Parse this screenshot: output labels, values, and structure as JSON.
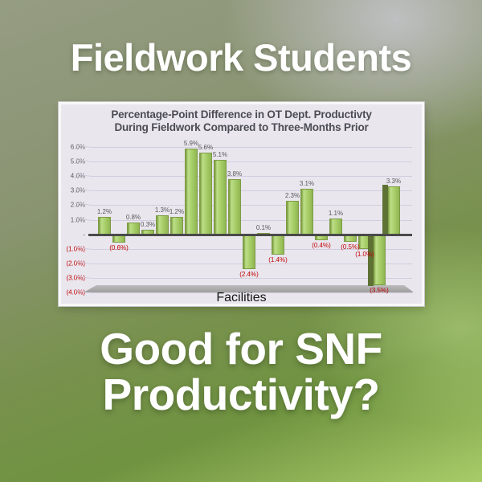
{
  "page": {
    "top_title": "Fieldwork Students",
    "bottom_title_line1": "Good for SNF",
    "bottom_title_line2": "Productivity?"
  },
  "chart_data": {
    "type": "bar",
    "title_lines": [
      "Percentage-Point Difference in OT Dept. Productivty",
      "During Fieldwork Compared to Three-Months Prior"
    ],
    "xlabel": "Facilities",
    "ylim": [
      -4,
      6
    ],
    "grid": true,
    "legend": false,
    "yticks": [
      {
        "value": 6,
        "label": "6.0%"
      },
      {
        "value": 5,
        "label": "5.0%"
      },
      {
        "value": 4,
        "label": "4.0%"
      },
      {
        "value": 3,
        "label": "3.0%"
      },
      {
        "value": 2,
        "label": "2.0%"
      },
      {
        "value": 1,
        "label": "1.0%"
      },
      {
        "value": 0,
        "label": "-"
      },
      {
        "value": -1,
        "label": "(1.0%)"
      },
      {
        "value": -2,
        "label": "(2.0%)"
      },
      {
        "value": -3,
        "label": "(3.0%)"
      },
      {
        "value": -4,
        "label": "(4.0%)"
      }
    ],
    "bars": [
      {
        "value": 1.2,
        "label": "1.2%"
      },
      {
        "value": -0.6,
        "label": "(0.6%)"
      },
      {
        "value": 0.8,
        "label": "0.8%"
      },
      {
        "value": 0.3,
        "label": "0.3%"
      },
      {
        "value": 1.3,
        "label": "1.3%"
      },
      {
        "value": 1.2,
        "label": "1.2%"
      },
      {
        "value": 5.9,
        "label": "5.9%"
      },
      {
        "value": 5.6,
        "label": "5.6%"
      },
      {
        "value": 5.1,
        "label": "5.1%"
      },
      {
        "value": 3.8,
        "label": "3.8%"
      },
      {
        "value": -2.4,
        "label": "(2.4%)"
      },
      {
        "value": 0.1,
        "label": "0.1%"
      },
      {
        "value": -1.4,
        "label": "(1.4%)"
      },
      {
        "value": 2.3,
        "label": "2.3%"
      },
      {
        "value": 3.1,
        "label": "3.1%"
      },
      {
        "value": -0.4,
        "label": "(0.4%)"
      },
      {
        "value": 1.1,
        "label": "1.1%"
      },
      {
        "value": -0.5,
        "label": "(0.5%)"
      },
      {
        "value": -1.0,
        "label": "(1.0%)"
      },
      {
        "value": -3.5,
        "label": "(3.5%)"
      },
      {
        "value": 3.3,
        "label": "3.3%"
      }
    ],
    "colors": {
      "bar_fill": "#a6cd67",
      "bar_highlight": "#bdde88",
      "bar_edge": "#7d9c45",
      "bar_side": "#5e7234",
      "positive_label": "#595959",
      "negative_label": "#c00000",
      "axis_line": "#4a4a4a",
      "plot_background": "#e9e6ee",
      "floor": "#ababab"
    }
  }
}
